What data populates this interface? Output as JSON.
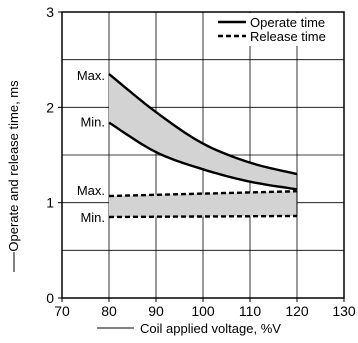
{
  "chart_data": {
    "type": "area",
    "xlabel": "Coil applied voltage, %V",
    "ylabel": "Operate and release time, ms",
    "xlim": [
      70,
      130
    ],
    "ylim": [
      0,
      3
    ],
    "x_ticks": [
      70,
      80,
      90,
      100,
      110,
      120,
      130
    ],
    "y_ticks": [
      0,
      1,
      2,
      3
    ],
    "grid": true,
    "legend_position": "top-right",
    "legend": [
      {
        "label": "Operate time",
        "style": "solid"
      },
      {
        "label": "Release time",
        "style": "dashed"
      }
    ],
    "bands": [
      {
        "series_name": "Operate time",
        "style": "solid",
        "x": [
          80,
          90,
          100,
          110,
          120
        ],
        "max": [
          2.35,
          1.95,
          1.62,
          1.42,
          1.3
        ],
        "min": [
          1.84,
          1.53,
          1.35,
          1.22,
          1.14
        ],
        "max_label": "Max.",
        "min_label": "Min."
      },
      {
        "series_name": "Release time",
        "style": "dashed",
        "x": [
          80,
          120
        ],
        "max": [
          1.07,
          1.12
        ],
        "min": [
          0.85,
          0.86
        ],
        "max_label": "Max.",
        "min_label": "Min."
      }
    ],
    "colors": {
      "fill": "#d3d3d3",
      "line": "#000000",
      "grid": "#000000"
    }
  }
}
